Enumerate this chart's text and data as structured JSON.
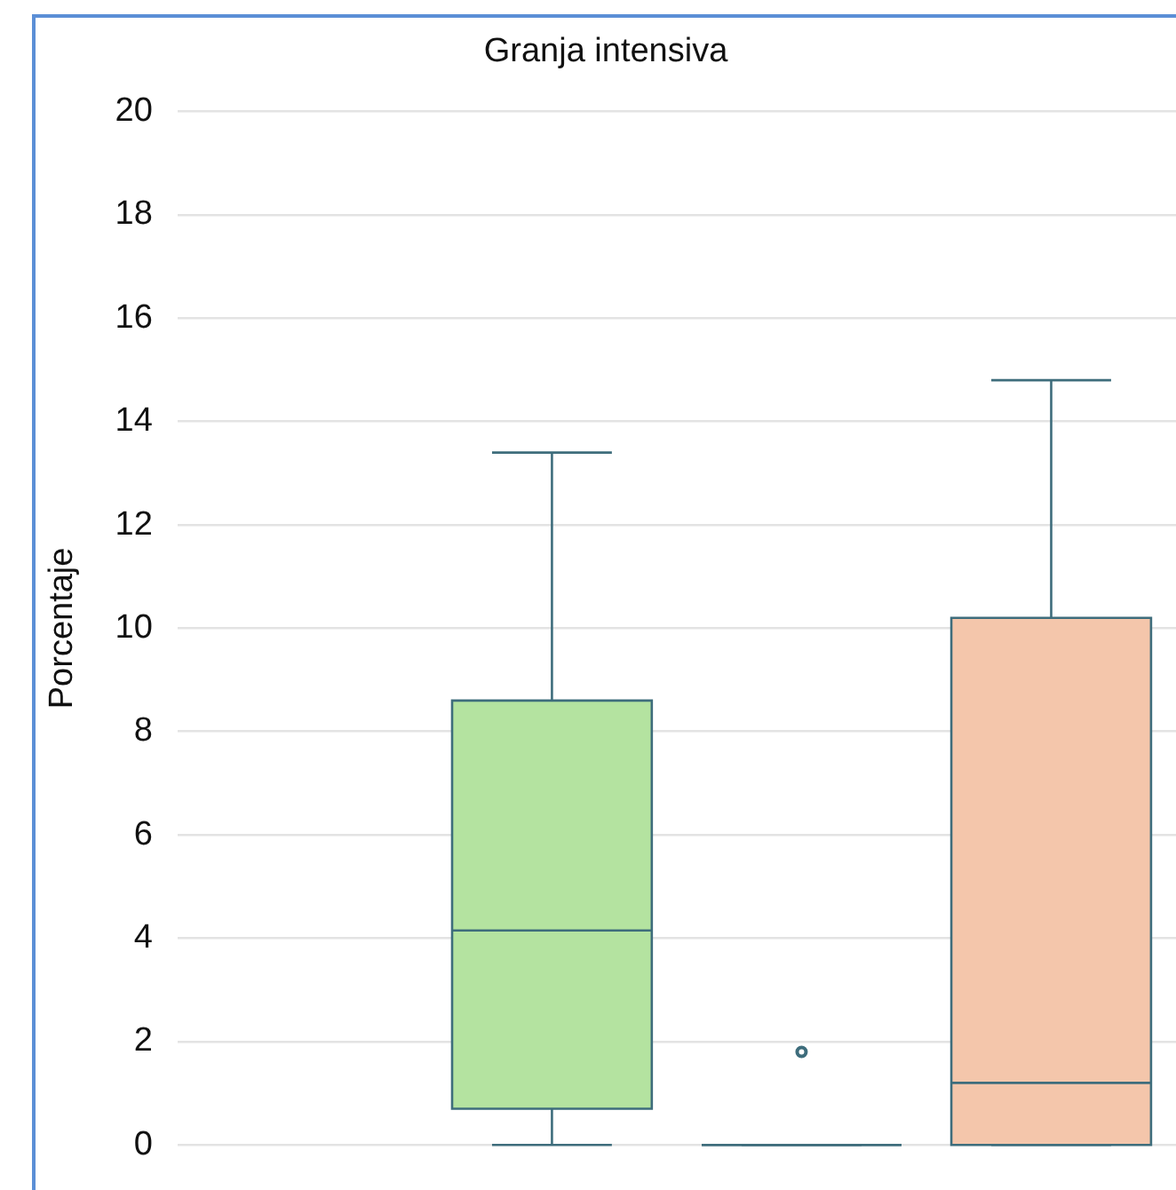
{
  "chart_data": {
    "type": "box",
    "title": "Granja intensiva",
    "ylabel": "Porcentaje",
    "categories": [
      null,
      null,
      null,
      null
    ],
    "boxes": [
      null,
      {
        "low": 0,
        "q1": 0.7,
        "median": 4.15,
        "q3": 8.6,
        "high": 13.4
      },
      {
        "low": 0,
        "q1": 0,
        "median": 0,
        "q3": 0,
        "high": 0,
        "outliers": [
          1.8
        ]
      },
      {
        "low": 0,
        "q1": 0,
        "median": 1.2,
        "q3": 10.2,
        "high": 14.8
      }
    ],
    "colors": [
      null,
      "#b4e3a0",
      "#3e6d7c",
      "#f4c6ab"
    ],
    "ylim": [
      0,
      20
    ],
    "yticks": [
      0,
      2,
      4,
      6,
      8,
      10,
      12,
      14,
      16,
      18,
      20
    ],
    "grid": "y",
    "legend": false,
    "tick_labels": "y"
  }
}
